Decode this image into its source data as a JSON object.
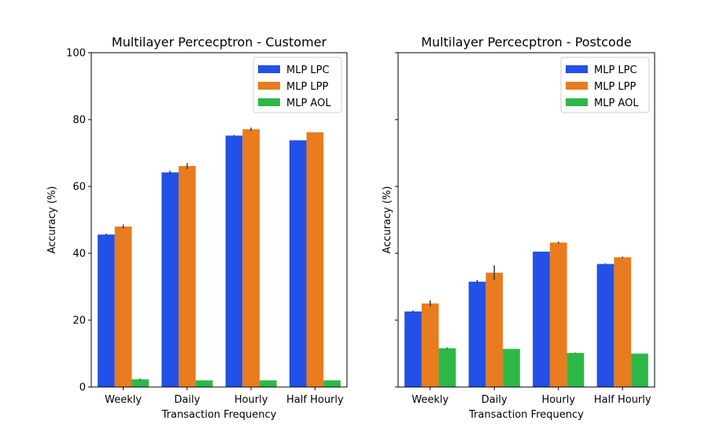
{
  "colors": {
    "MLP LPC": "#2350e6",
    "MLP LPP": "#e87c1e",
    "MLP AOL": "#2db848"
  },
  "chart_data": [
    {
      "type": "bar",
      "title": "Multilayer Percecptron - Customer",
      "xlabel": "Transaction Frequency",
      "ylabel": "Accuracy (%)",
      "ylim": [
        0,
        100
      ],
      "yticks": [
        0,
        20,
        40,
        60,
        80,
        100
      ],
      "show_ytick_labels": true,
      "legend_position": "top-right",
      "categories": [
        "Weekly",
        "Daily",
        "Hourly",
        "Half Hourly"
      ],
      "series": [
        {
          "name": "MLP LPC",
          "values": [
            45.6,
            64.2,
            75.2,
            73.8
          ],
          "errors": [
            0.3,
            0.5,
            0.2,
            0.0
          ]
        },
        {
          "name": "MLP LPP",
          "values": [
            48.0,
            66.1,
            77.1,
            76.2
          ],
          "errors": [
            0.6,
            0.9,
            0.5,
            0.0
          ]
        },
        {
          "name": "MLP AOL",
          "values": [
            2.3,
            2.0,
            2.0,
            2.0
          ],
          "errors": [
            0.2,
            0.0,
            0.0,
            0.0
          ]
        }
      ]
    },
    {
      "type": "bar",
      "title": "Multilayer Percecptron - Postcode",
      "xlabel": "Transaction Frequency",
      "ylabel": "Accuracy (%)",
      "ylim": [
        0,
        100
      ],
      "yticks": [
        0,
        20,
        40,
        60,
        80,
        100
      ],
      "show_ytick_labels": false,
      "legend_position": "top-right",
      "categories": [
        "Weekly",
        "Daily",
        "Hourly",
        "Half Hourly"
      ],
      "series": [
        {
          "name": "MLP LPC",
          "values": [
            22.6,
            31.5,
            40.5,
            36.8
          ],
          "errors": [
            0.3,
            0.5,
            0.0,
            0.2
          ]
        },
        {
          "name": "MLP LPP",
          "values": [
            25.0,
            34.2,
            43.2,
            38.8
          ],
          "errors": [
            0.9,
            2.2,
            0.3,
            0.2
          ]
        },
        {
          "name": "MLP AOL",
          "values": [
            11.6,
            11.4,
            10.2,
            10.0
          ],
          "errors": [
            0.2,
            0.0,
            0.1,
            0.0
          ]
        }
      ]
    }
  ]
}
